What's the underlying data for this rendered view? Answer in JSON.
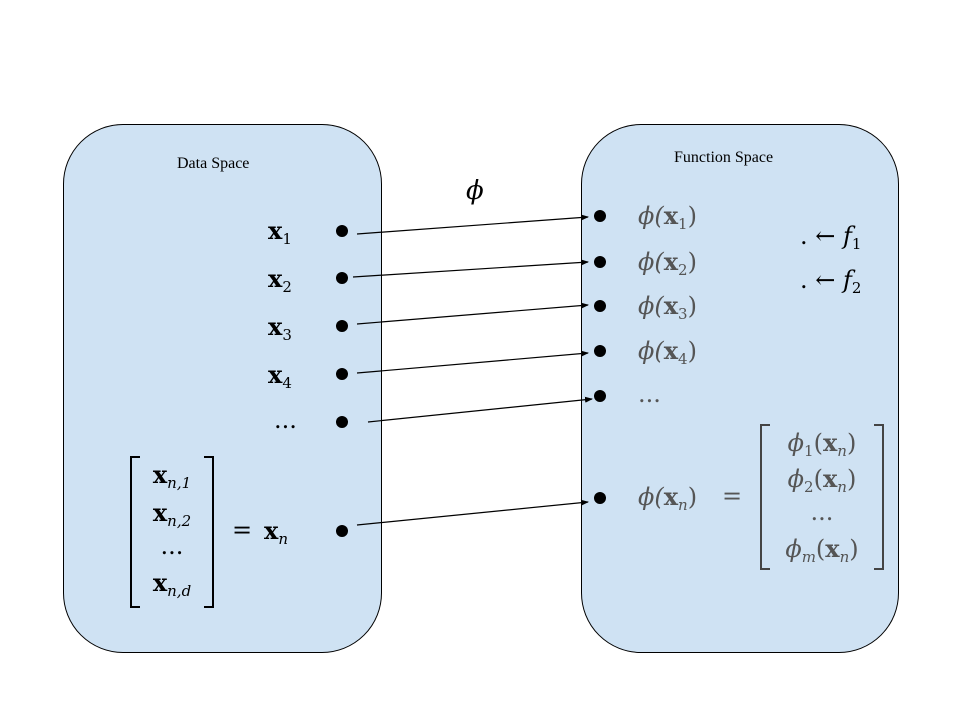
{
  "left_panel": {
    "title": "Data Space"
  },
  "right_panel": {
    "title": "Function Space"
  },
  "map_label": "ϕ",
  "left_items": [
    {
      "base": "x",
      "sub": "1"
    },
    {
      "base": "x",
      "sub": "2"
    },
    {
      "base": "x",
      "sub": "3"
    },
    {
      "base": "x",
      "sub": "4"
    },
    {
      "text": "..."
    }
  ],
  "xn_vector": {
    "rows": [
      {
        "base": "x",
        "sub": "n,1"
      },
      {
        "base": "x",
        "sub": "n,2"
      },
      {
        "text": "..."
      },
      {
        "base": "x",
        "sub": "n,d"
      }
    ],
    "equals": "=",
    "result": {
      "base": "x",
      "sub": "n"
    }
  },
  "right_items": [
    {
      "func": "ϕ(",
      "base": "x",
      "sub": "1",
      "close": ")"
    },
    {
      "func": "ϕ(",
      "base": "x",
      "sub": "2",
      "close": ")"
    },
    {
      "func": "ϕ(",
      "base": "x",
      "sub": "3",
      "close": ")"
    },
    {
      "func": "ϕ(",
      "base": "x",
      "sub": "4",
      "close": ")"
    },
    {
      "text": "..."
    }
  ],
  "phi_xn": {
    "func": "ϕ(",
    "base": "x",
    "sub": "n",
    "close": ")",
    "equals": "=",
    "rows": [
      {
        "func": "ϕ",
        "fsub": "1",
        "open": "(",
        "base": "x",
        "sub": "n",
        "close": ")"
      },
      {
        "func": "ϕ",
        "fsub": "2",
        "open": "(",
        "base": "x",
        "sub": "n",
        "close": ")"
      },
      {
        "text": "..."
      },
      {
        "func": "ϕ",
        "fsub": "m",
        "open": "(",
        "base": "x",
        "sub": "n",
        "close": ")"
      }
    ]
  },
  "f_labels": [
    {
      "prefix": ". ←",
      "name": "f",
      "sub": "1"
    },
    {
      "prefix": ". ←",
      "name": "f",
      "sub": "2"
    }
  ]
}
